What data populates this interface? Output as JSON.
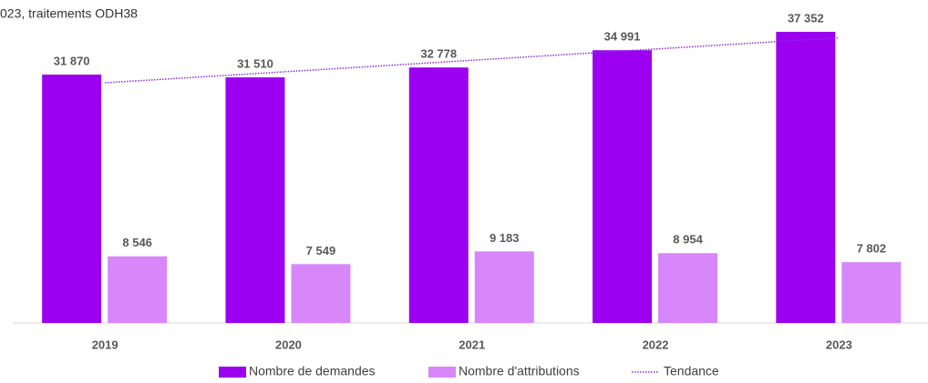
{
  "chart_data": {
    "type": "bar",
    "title": "023, traitements  ODH38",
    "categories": [
      "2019",
      "2020",
      "2021",
      "2022",
      "2023"
    ],
    "ylim": [
      0,
      40000
    ],
    "series": [
      {
        "name": "Nombre de demandes",
        "color": "#9b00f0",
        "values": [
          31870,
          31510,
          32778,
          34991,
          37352
        ],
        "value_labels": [
          "31 870",
          "31 510",
          "32 778",
          "34 991",
          "37 352"
        ]
      },
      {
        "name": "Nombre d'attributions",
        "color": "#d787fa",
        "values": [
          8546,
          7549,
          9183,
          8954,
          7802
        ],
        "value_labels": [
          "8 546",
          "7 549",
          "9 183",
          "8 954",
          "7 802"
        ]
      },
      {
        "name": "Tendance",
        "type": "line",
        "style": "dotted",
        "color": "#8a2be2",
        "values": [
          30811,
          32256,
          33700,
          35145,
          36589
        ]
      }
    ]
  }
}
